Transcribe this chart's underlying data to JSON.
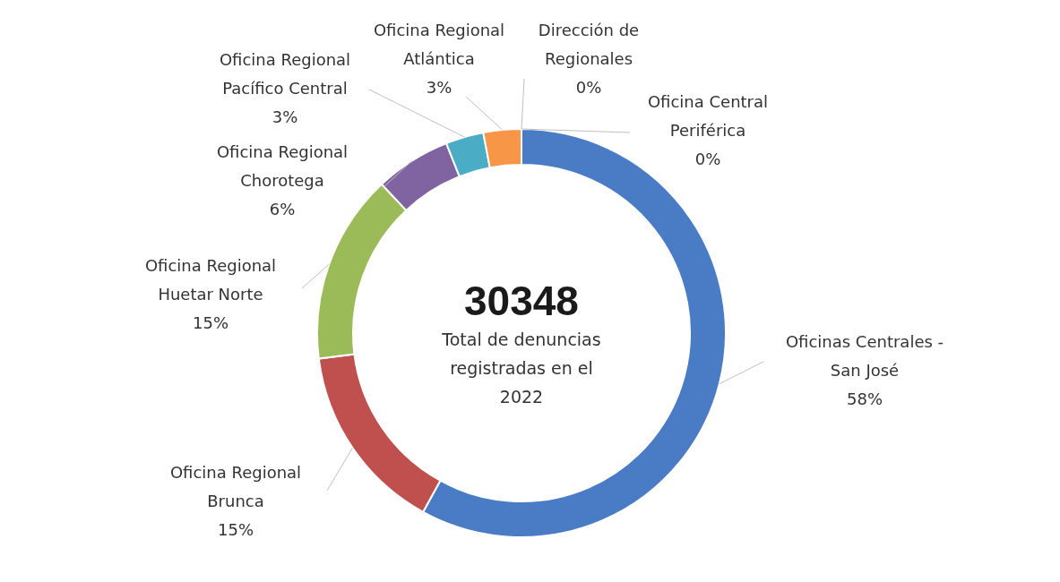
{
  "chart_data": {
    "type": "donut",
    "categories": [
      "Oficinas Centrales - San José",
      "Oficina Regional Brunca",
      "Oficina Regional Huetar Norte",
      "Oficina Regional Chorotega",
      "Oficina Regional Pacífico Central",
      "Oficina Regional Atlántica",
      "Dirección de Regionales",
      "Oficina Central Periférica"
    ],
    "values": [
      58,
      15,
      15,
      6,
      3,
      3,
      0,
      0
    ],
    "value_labels": [
      "58%",
      "15%",
      "15%",
      "6%",
      "3%",
      "3%",
      "0%",
      "0%"
    ],
    "colors": [
      "#4a7cc6",
      "#c0504d",
      "#9bbb59",
      "#8064a2",
      "#4bacc6",
      "#f79646",
      null,
      null
    ],
    "annotations": [
      "30348",
      "Total de denuncias registradas en el 2022"
    ]
  }
}
